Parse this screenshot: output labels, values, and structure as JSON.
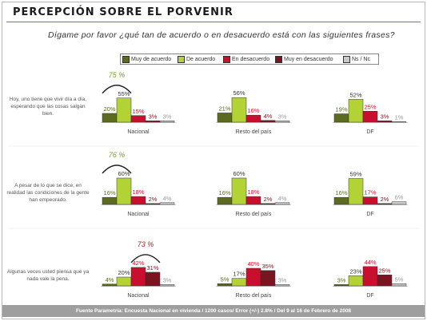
{
  "title": "PERCEPCIÓN SOBRE EL PORVENIR",
  "question": "Dígame por favor ¿qué tan de acuerdo o en desacuerdo está con las siguientes frases?",
  "legend": [
    {
      "label": "Muy de acuerdo",
      "color": "#5b6b1f"
    },
    {
      "label": "De acuerdo",
      "color": "#b2d235"
    },
    {
      "label": "En desacuerdo",
      "color": "#c8102e"
    },
    {
      "label": "Muy en desacuerdo",
      "color": "#7a1420"
    },
    {
      "label": "Ns / Nc",
      "color": "#c9c9c9"
    }
  ],
  "footer": "Fuente Parametría: Encuesta Nacional en vivienda / 1200 casos/ Error (+/-) 2.8% / Del 9 al 16 de Febrero de 2008",
  "chart_data": {
    "type": "bar",
    "series_names": [
      "Muy de acuerdo",
      "De acuerdo",
      "En desacuerdo",
      "Muy en desacuerdo",
      "Ns / Nc"
    ],
    "groups": [
      "Nacional",
      "Resto del país",
      "DF"
    ],
    "rows": [
      {
        "label": "Hoy, uno tiene que vivir día a día, esperando que las cosas salgan bien.",
        "annotation": "75 %",
        "annotation_color": "#7aa61c",
        "values": [
          [
            20,
            55,
            15,
            3,
            3
          ],
          [
            21,
            56,
            16,
            4,
            3
          ],
          [
            19,
            52,
            25,
            3,
            1
          ]
        ],
        "labels": [
          [
            "20%",
            "55%",
            "15%",
            "3%",
            "3%"
          ],
          [
            "21%",
            "56%",
            "16%",
            "4%",
            "3%"
          ],
          [
            "19%",
            "52%",
            "25%",
            "3%",
            "1%"
          ]
        ]
      },
      {
        "label": "A pesar de lo que se dice, en realidad las condiciones de la gente han empeorado.",
        "annotation": "76 %",
        "annotation_color": "#7aa61c",
        "values": [
          [
            16,
            60,
            18,
            2,
            4
          ],
          [
            16,
            60,
            18,
            2,
            4
          ],
          [
            16,
            59,
            17,
            2,
            6
          ]
        ],
        "labels": [
          [
            "16%",
            "60%",
            "18%",
            "2%",
            "4%"
          ],
          [
            "16%",
            "60%",
            "18%",
            "2%",
            "4%"
          ],
          [
            "16%",
            "59%",
            "17%",
            "2%",
            "6%"
          ]
        ]
      },
      {
        "label": "Algunas veces usted piensa que ya nada vale la pena.",
        "annotation": "73 %",
        "annotation_color": "#b01c1c",
        "values": [
          [
            4,
            20,
            42,
            31,
            3
          ],
          [
            5,
            17,
            40,
            35,
            3
          ],
          [
            3,
            23,
            44,
            25,
            5
          ]
        ],
        "labels": [
          [
            "4%",
            "20%",
            "42%",
            "31%",
            "3%"
          ],
          [
            "5%",
            "17%",
            "40%",
            "35%",
            "3%"
          ],
          [
            "3%",
            "23%",
            "44%",
            "25%",
            "5%"
          ]
        ]
      }
    ]
  }
}
